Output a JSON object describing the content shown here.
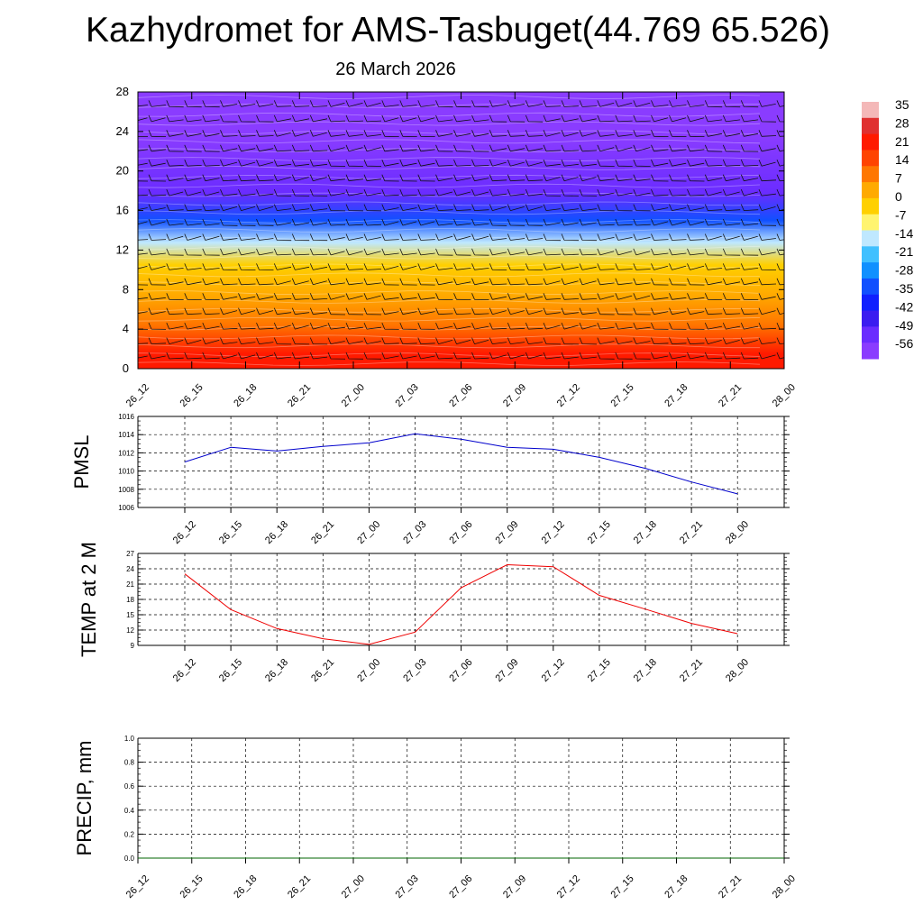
{
  "header": {
    "title": "Kazhydromet for AMS-Tasbuget(44.769 65.526)",
    "subtitle": "26 March 2026"
  },
  "chart_data": [
    {
      "type": "heatmap",
      "title": "",
      "xlabel": "",
      "ylabel": "",
      "x_tick_labels": [
        "26_12",
        "26_15",
        "26_18",
        "26_21",
        "27_00",
        "27_03",
        "27_06",
        "27_09",
        "27_12",
        "27_15",
        "27_18",
        "27_21",
        "28_00"
      ],
      "y_ticks": [
        0,
        4,
        8,
        12,
        16,
        20,
        24,
        28
      ],
      "ylim": [
        0,
        28
      ],
      "colorbar_labels": [
        "35",
        "28",
        "21",
        "14",
        "7",
        "0",
        "-7",
        "-14",
        "-21",
        "-28",
        "-35",
        "-42",
        "-49",
        "-56"
      ],
      "colorbar_colors": [
        "#f4b8b8",
        "#e03030",
        "#ff1a00",
        "#ff4400",
        "#ff7700",
        "#ffaa00",
        "#ffd000",
        "#fff470",
        "#bfe8ff",
        "#40c0ff",
        "#1090ff",
        "#1050ff",
        "#1020ff",
        "#3b1cf0",
        "#6a2cff",
        "#8a3cff"
      ],
      "layers": [
        {
          "height_top": 3,
          "temp": 21
        },
        {
          "height_top": 6,
          "temp": 14
        },
        {
          "height_top": 9,
          "temp": 7
        },
        {
          "height_top": 12,
          "temp": 0
        },
        {
          "height_top": 13.5,
          "temp": -14
        },
        {
          "height_top": 16.5,
          "temp": -35
        },
        {
          "height_top": 19,
          "temp": -52
        },
        {
          "height_top": 28,
          "temp": -60
        }
      ]
    },
    {
      "type": "line",
      "title": "",
      "xlabel": "",
      "ylabel": "PMSL",
      "ylim": [
        1006,
        1016
      ],
      "y_ticks": [
        1006,
        1008,
        1010,
        1012,
        1014,
        1016
      ],
      "categories": [
        "26_12",
        "26_15",
        "26_18",
        "26_21",
        "27_00",
        "27_03",
        "27_06",
        "27_09",
        "27_12",
        "27_15",
        "27_18",
        "27_21",
        "28_00"
      ],
      "series": [
        {
          "name": "PMSL",
          "color": "#0000cc",
          "values": [
            1011.0,
            1012.6,
            1012.2,
            1012.7,
            1013.1,
            1014.1,
            1013.5,
            1012.6,
            1012.4,
            1011.5,
            1010.3,
            1008.8,
            1007.5
          ]
        }
      ]
    },
    {
      "type": "line",
      "title": "",
      "xlabel": "",
      "ylabel": "TEMP at 2 M",
      "ylim": [
        9,
        27
      ],
      "y_ticks": [
        9,
        12,
        15,
        18,
        21,
        24,
        27
      ],
      "categories": [
        "26_12",
        "26_15",
        "26_18",
        "26_21",
        "27_00",
        "27_03",
        "27_06",
        "27_09",
        "27_12",
        "27_15",
        "27_18",
        "27_21",
        "28_00"
      ],
      "series": [
        {
          "name": "TEMP at 2 M",
          "color": "#ee0000",
          "values": [
            23.0,
            16.0,
            12.3,
            10.3,
            9.2,
            11.6,
            20.3,
            24.8,
            24.4,
            18.8,
            16.1,
            13.3,
            11.3
          ]
        }
      ]
    },
    {
      "type": "line",
      "title": "",
      "xlabel": "",
      "ylabel": "PRECIP, mm",
      "ylim": [
        0,
        1
      ],
      "y_ticks": [
        "0.0",
        "0.2",
        "0.4",
        "0.6",
        "0.8",
        "1.0"
      ],
      "categories": [
        "26_12",
        "26_15",
        "26_18",
        "26_21",
        "27_00",
        "27_03",
        "27_06",
        "27_09",
        "27_12",
        "27_15",
        "27_18",
        "27_21",
        "28_00"
      ],
      "series": [
        {
          "name": "PRECIP",
          "color": "#006600",
          "values": [
            0,
            0,
            0,
            0,
            0,
            0,
            0,
            0,
            0,
            0,
            0,
            0,
            0
          ]
        }
      ]
    }
  ]
}
